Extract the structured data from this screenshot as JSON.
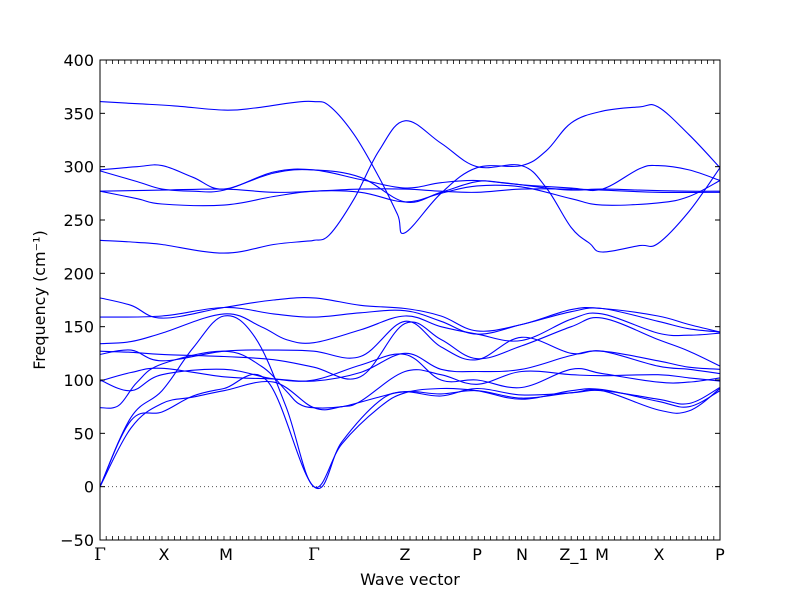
{
  "chart_data": {
    "type": "line",
    "xlabel": "Wave vector",
    "ylabel": "Frequency (cm⁻¹)",
    "ylim": [
      -50,
      400
    ],
    "yticks": [
      -50,
      0,
      50,
      100,
      150,
      200,
      250,
      300,
      350,
      400
    ],
    "grid": false,
    "zero_line": {
      "y": 0,
      "style": "dotted"
    },
    "series_color": "#0000ff",
    "kpoints": [
      {
        "label": "Γ",
        "x": 0
      },
      {
        "label": "X",
        "x": 0.1032
      },
      {
        "label": "M",
        "x": 0.2032
      },
      {
        "label": "Γ",
        "x": 0.3452
      },
      {
        "label": "Z",
        "x": 0.4919
      },
      {
        "label": "P",
        "x": 0.6081
      },
      {
        "label": "N",
        "x": 0.6806
      },
      {
        "label": "Z_1",
        "x": 0.7645
      },
      {
        "label": "M",
        "x": 0.8097
      },
      {
        "label": "X",
        "x": 0.9016
      },
      {
        "label": "P",
        "x": 1.0
      }
    ],
    "series": [
      {
        "values": [
          [
            0,
            361
          ],
          [
            0.06,
            359
          ],
          [
            0.12,
            357
          ],
          [
            0.2,
            353
          ],
          [
            0.25,
            355
          ],
          [
            0.31,
            360
          ],
          [
            0.345,
            361
          ],
          [
            0.37,
            357
          ],
          [
            0.41,
            330
          ],
          [
            0.45,
            290
          ],
          [
            0.48,
            255
          ],
          [
            0.492,
            238
          ],
          [
            0.55,
            275
          ],
          [
            0.608,
            299
          ],
          [
            0.68,
            301
          ],
          [
            0.72,
            315
          ],
          [
            0.76,
            341
          ],
          [
            0.81,
            352
          ],
          [
            0.87,
            356
          ],
          [
            0.9,
            356
          ],
          [
            0.95,
            330
          ],
          [
            1.0,
            299
          ]
        ]
      },
      {
        "values": [
          [
            0,
            297
          ],
          [
            0.06,
            300
          ],
          [
            0.1,
            301
          ],
          [
            0.15,
            290
          ],
          [
            0.2,
            279
          ],
          [
            0.28,
            295
          ],
          [
            0.345,
            297
          ],
          [
            0.42,
            288
          ],
          [
            0.492,
            280
          ],
          [
            0.55,
            285
          ],
          [
            0.608,
            287
          ],
          [
            0.68,
            283
          ],
          [
            0.76,
            280
          ],
          [
            0.81,
            279
          ],
          [
            0.87,
            298
          ],
          [
            0.9,
            301
          ],
          [
            0.95,
            297
          ],
          [
            1.0,
            287
          ]
        ]
      },
      {
        "values": [
          [
            0,
            296
          ],
          [
            0.06,
            286
          ],
          [
            0.1,
            279
          ],
          [
            0.15,
            277
          ],
          [
            0.2,
            278
          ],
          [
            0.28,
            294
          ],
          [
            0.345,
            297
          ],
          [
            0.42,
            290
          ],
          [
            0.492,
            267
          ],
          [
            0.55,
            276
          ],
          [
            0.608,
            286
          ],
          [
            0.65,
            285
          ],
          [
            0.72,
            280
          ],
          [
            0.76,
            278
          ],
          [
            0.81,
            279
          ],
          [
            0.87,
            278
          ],
          [
            0.95,
            277
          ],
          [
            1.0,
            277
          ]
        ]
      },
      {
        "values": [
          [
            0,
            277
          ],
          [
            0.1,
            278
          ],
          [
            0.2,
            279
          ],
          [
            0.28,
            276
          ],
          [
            0.345,
            277
          ],
          [
            0.42,
            279
          ],
          [
            0.492,
            279
          ],
          [
            0.55,
            277
          ],
          [
            0.608,
            276
          ],
          [
            0.68,
            279
          ],
          [
            0.76,
            279
          ],
          [
            0.81,
            278
          ],
          [
            0.9,
            276
          ],
          [
            1.0,
            276
          ]
        ]
      },
      {
        "values": [
          [
            0,
            277
          ],
          [
            0.06,
            270
          ],
          [
            0.1,
            265
          ],
          [
            0.2,
            264
          ],
          [
            0.28,
            272
          ],
          [
            0.345,
            277
          ],
          [
            0.42,
            276
          ],
          [
            0.492,
            267
          ],
          [
            0.55,
            275
          ],
          [
            0.608,
            282
          ],
          [
            0.68,
            281
          ],
          [
            0.76,
            270
          ],
          [
            0.81,
            264
          ],
          [
            0.9,
            266
          ],
          [
            0.95,
            272
          ],
          [
            1.0,
            287
          ]
        ]
      },
      {
        "values": [
          [
            0,
            231
          ],
          [
            0.06,
            229
          ],
          [
            0.1,
            227
          ],
          [
            0.2,
            219
          ],
          [
            0.28,
            227
          ],
          [
            0.33,
            230
          ],
          [
            0.345,
            231
          ],
          [
            0.37,
            236
          ],
          [
            0.41,
            270
          ],
          [
            0.45,
            315
          ],
          [
            0.492,
            343
          ],
          [
            0.55,
            322
          ],
          [
            0.608,
            300
          ],
          [
            0.68,
            301
          ],
          [
            0.72,
            280
          ],
          [
            0.76,
            243
          ],
          [
            0.79,
            228
          ],
          [
            0.81,
            220
          ],
          [
            0.87,
            226
          ],
          [
            0.9,
            228
          ],
          [
            0.95,
            258
          ],
          [
            1.0,
            299
          ]
        ]
      },
      {
        "values": [
          [
            0,
            177
          ],
          [
            0.05,
            170
          ],
          [
            0.1,
            158
          ],
          [
            0.2,
            168
          ],
          [
            0.28,
            175
          ],
          [
            0.345,
            177
          ],
          [
            0.42,
            170
          ],
          [
            0.492,
            167
          ],
          [
            0.55,
            160
          ],
          [
            0.608,
            146
          ],
          [
            0.68,
            152
          ],
          [
            0.76,
            166
          ],
          [
            0.81,
            167
          ],
          [
            0.9,
            160
          ],
          [
            0.95,
            152
          ],
          [
            1.0,
            145
          ]
        ]
      },
      {
        "values": [
          [
            0,
            159
          ],
          [
            0.1,
            160
          ],
          [
            0.2,
            168
          ],
          [
            0.28,
            162
          ],
          [
            0.345,
            159
          ],
          [
            0.42,
            163
          ],
          [
            0.492,
            165
          ],
          [
            0.55,
            155
          ],
          [
            0.608,
            143
          ],
          [
            0.68,
            152
          ],
          [
            0.76,
            164
          ],
          [
            0.81,
            167
          ],
          [
            0.9,
            155
          ],
          [
            0.95,
            148
          ],
          [
            1.0,
            145
          ]
        ]
      },
      {
        "values": [
          [
            0,
            134
          ],
          [
            0.05,
            136
          ],
          [
            0.1,
            144
          ],
          [
            0.2,
            162
          ],
          [
            0.26,
            150
          ],
          [
            0.3,
            138
          ],
          [
            0.345,
            135
          ],
          [
            0.42,
            147
          ],
          [
            0.492,
            160
          ],
          [
            0.55,
            150
          ],
          [
            0.608,
            143
          ],
          [
            0.68,
            137
          ],
          [
            0.76,
            157
          ],
          [
            0.81,
            162
          ],
          [
            0.9,
            144
          ],
          [
            0.95,
            142
          ],
          [
            1.0,
            144
          ]
        ]
      },
      {
        "values": [
          [
            0,
            127
          ],
          [
            0.05,
            126
          ],
          [
            0.1,
            124
          ],
          [
            0.2,
            122
          ],
          [
            0.28,
            119
          ],
          [
            0.345,
            112
          ],
          [
            0.42,
            103
          ],
          [
            0.492,
            153
          ],
          [
            0.55,
            138
          ],
          [
            0.608,
            120
          ],
          [
            0.68,
            132
          ],
          [
            0.76,
            150
          ],
          [
            0.81,
            158
          ],
          [
            0.9,
            138
          ],
          [
            0.95,
            127
          ],
          [
            1.0,
            113
          ]
        ]
      },
      {
        "values": [
          [
            0,
            124
          ],
          [
            0.05,
            128
          ],
          [
            0.1,
            118
          ],
          [
            0.2,
            127
          ],
          [
            0.28,
            128
          ],
          [
            0.345,
            127
          ],
          [
            0.42,
            122
          ],
          [
            0.492,
            155
          ],
          [
            0.55,
            131
          ],
          [
            0.608,
            119
          ],
          [
            0.68,
            140
          ],
          [
            0.76,
            125
          ],
          [
            0.81,
            127
          ],
          [
            0.9,
            113
          ],
          [
            0.95,
            110
          ],
          [
            1.0,
            106
          ]
        ]
      },
      {
        "values": [
          [
            0,
            99
          ],
          [
            0.05,
            107
          ],
          [
            0.1,
            111
          ],
          [
            0.2,
            103
          ],
          [
            0.28,
            101
          ],
          [
            0.345,
            99
          ],
          [
            0.42,
            107
          ],
          [
            0.492,
            125
          ],
          [
            0.55,
            110
          ],
          [
            0.608,
            108
          ],
          [
            0.68,
            110
          ],
          [
            0.76,
            123
          ],
          [
            0.81,
            127
          ],
          [
            0.9,
            118
          ],
          [
            0.95,
            112
          ],
          [
            1.0,
            110
          ]
        ]
      },
      {
        "values": [
          [
            0,
            100
          ],
          [
            0.05,
            90
          ],
          [
            0.1,
            105
          ],
          [
            0.2,
            110
          ],
          [
            0.28,
            101
          ],
          [
            0.345,
            100
          ],
          [
            0.42,
            114
          ],
          [
            0.492,
            124
          ],
          [
            0.55,
            100
          ],
          [
            0.608,
            100
          ],
          [
            0.68,
            93
          ],
          [
            0.76,
            110
          ],
          [
            0.81,
            106
          ],
          [
            0.9,
            98
          ],
          [
            0.95,
            98
          ],
          [
            1.0,
            102
          ]
        ]
      },
      {
        "values": [
          [
            0,
            74
          ],
          [
            0.03,
            76
          ],
          [
            0.06,
            98
          ],
          [
            0.1,
            115
          ],
          [
            0.2,
            127
          ],
          [
            0.26,
            113
          ],
          [
            0.3,
            90
          ],
          [
            0.32,
            78
          ],
          [
            0.345,
            74
          ],
          [
            0.39,
            75
          ],
          [
            0.42,
            80
          ],
          [
            0.492,
            108
          ],
          [
            0.55,
            105
          ],
          [
            0.608,
            96
          ],
          [
            0.68,
            108
          ],
          [
            0.76,
            105
          ],
          [
            0.81,
            104
          ],
          [
            0.9,
            105
          ],
          [
            0.95,
            102
          ],
          [
            1.0,
            99
          ]
        ]
      },
      {
        "values": [
          [
            0,
            0
          ],
          [
            0.05,
            65
          ],
          [
            0.1,
            90
          ],
          [
            0.15,
            130
          ],
          [
            0.2,
            160
          ],
          [
            0.25,
            140
          ],
          [
            0.3,
            75
          ],
          [
            0.345,
            0
          ],
          [
            0.39,
            40
          ],
          [
            0.45,
            74
          ],
          [
            0.492,
            88
          ],
          [
            0.55,
            92
          ],
          [
            0.608,
            90
          ],
          [
            0.68,
            82
          ],
          [
            0.76,
            90
          ],
          [
            0.81,
            91
          ],
          [
            0.9,
            80
          ],
          [
            0.95,
            75
          ],
          [
            1.0,
            90
          ]
        ]
      },
      {
        "values": [
          [
            0,
            0
          ],
          [
            0.05,
            55
          ],
          [
            0.1,
            78
          ],
          [
            0.15,
            84
          ],
          [
            0.2,
            90
          ],
          [
            0.28,
            98
          ],
          [
            0.345,
            74
          ],
          [
            0.39,
            75
          ],
          [
            0.45,
            84
          ],
          [
            0.492,
            89
          ],
          [
            0.55,
            85
          ],
          [
            0.608,
            92
          ],
          [
            0.68,
            86
          ],
          [
            0.76,
            88
          ],
          [
            0.81,
            90
          ],
          [
            0.9,
            82
          ],
          [
            0.95,
            78
          ],
          [
            1.0,
            93
          ]
        ]
      },
      {
        "values": [
          [
            0,
            0
          ],
          [
            0.05,
            62
          ],
          [
            0.1,
            70
          ],
          [
            0.15,
            85
          ],
          [
            0.2,
            92
          ],
          [
            0.27,
            99
          ],
          [
            0.345,
            0
          ],
          [
            0.39,
            42
          ],
          [
            0.45,
            80
          ],
          [
            0.492,
            89
          ],
          [
            0.55,
            87
          ],
          [
            0.608,
            90
          ],
          [
            0.68,
            83
          ],
          [
            0.76,
            88
          ],
          [
            0.81,
            90
          ],
          [
            0.9,
            72
          ],
          [
            0.95,
            71
          ],
          [
            1.0,
            92
          ]
        ]
      }
    ]
  }
}
